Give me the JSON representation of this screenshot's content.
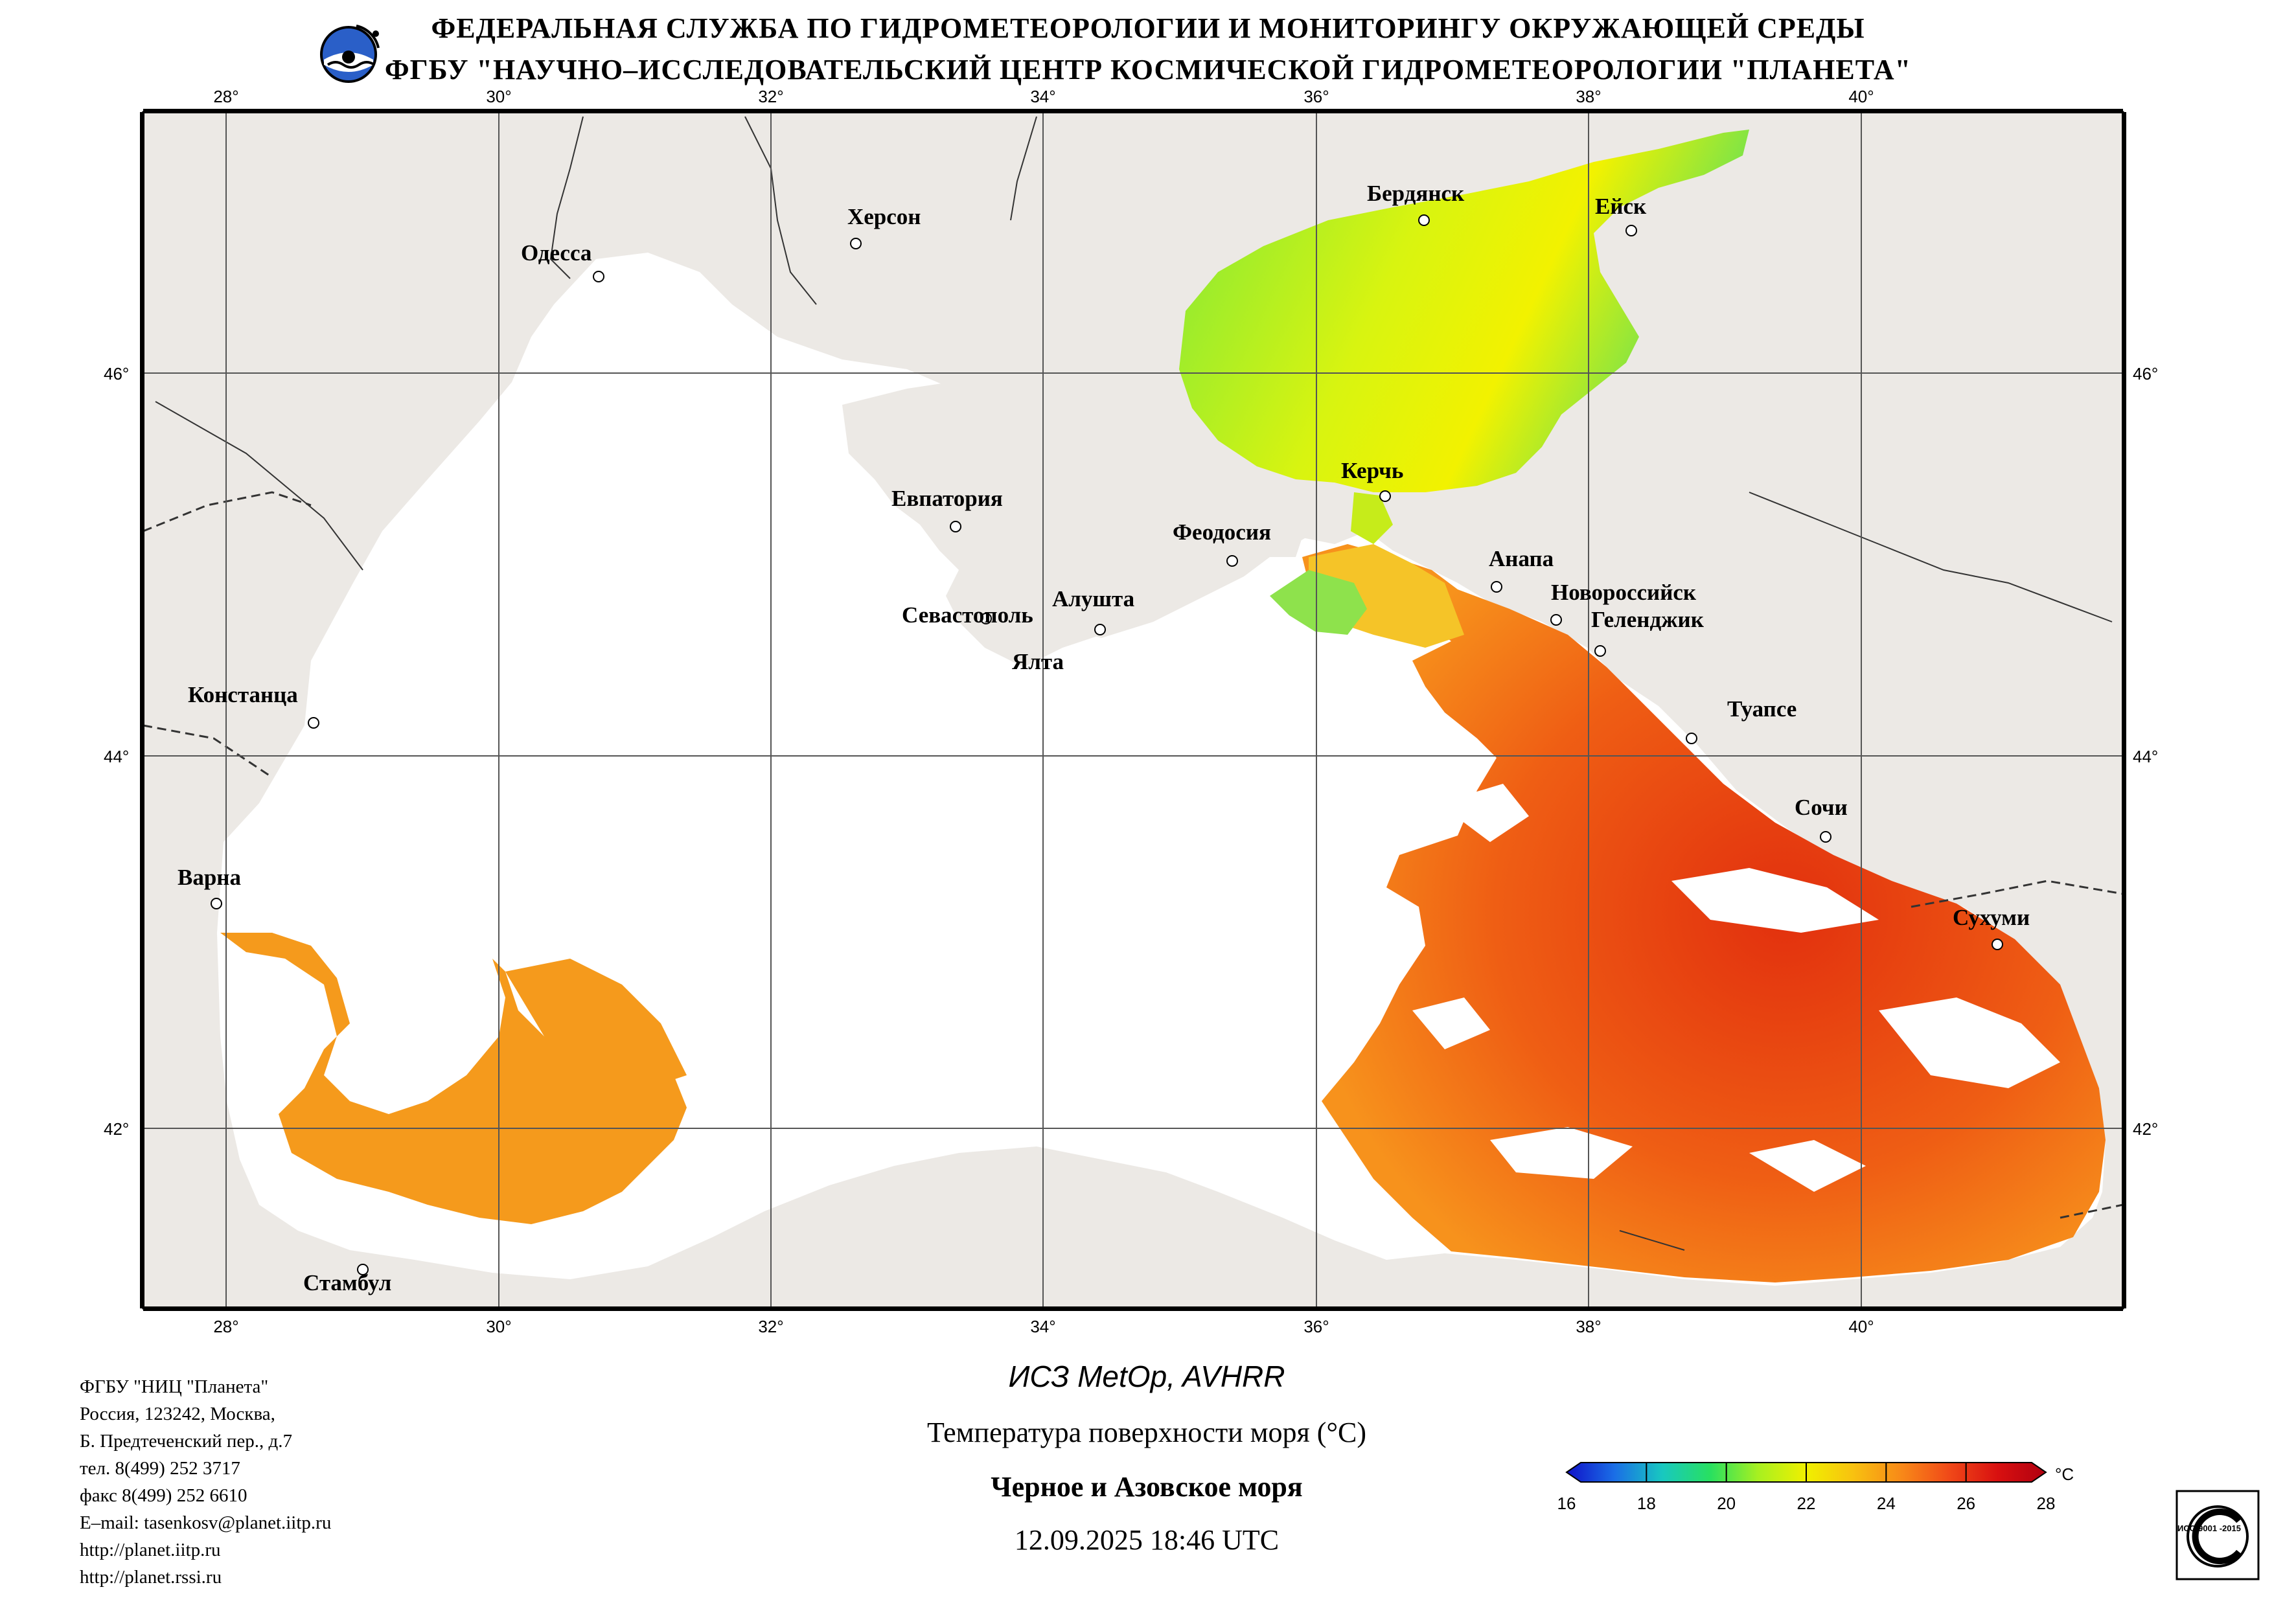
{
  "header": {
    "line1": "ФЕДЕРАЛЬНАЯ СЛУЖБА ПО ГИДРОМЕТЕОРОЛОГИИ И МОНИТОРИНГУ ОКРУЖАЮЩЕЙ СРЕДЫ",
    "line2": "ФГБУ \"НАУЧНО–ИССЛЕДОВАТЕЛЬСКИЙ ЦЕНТР КОСМИЧЕСКОЙ ГИДРОМЕТЕОРОЛОГИИ \"ПЛАНЕТА\""
  },
  "map": {
    "lon_labels": [
      "28°",
      "30°",
      "32°",
      "34°",
      "36°",
      "38°",
      "40°"
    ],
    "lat_labels": [
      "46°",
      "44°",
      "42°"
    ],
    "cities": [
      "Бердянск",
      "Ейск",
      "Херсон",
      "Одесса",
      "Керчь",
      "Евпатория",
      "Феодосия",
      "Анапа",
      "Новороссийск",
      "Геленджик",
      "Севастополь",
      "Алушта",
      "Ялта",
      "Туапсе",
      "Констанца",
      "Сочи",
      "Варна",
      "Сухуми",
      "Стамбул"
    ],
    "colors": {
      "land": "#ece9e5",
      "water_no_data": "#ffffff",
      "grid": "#555555",
      "frame": "#000000"
    }
  },
  "footer": {
    "address_lines": [
      "ФГБУ \"НИЦ \"Планета\"",
      "Россия, 123242, Москва,",
      "Б. Предтеченский пер., д.7",
      "тел. 8(499) 252 3717",
      "факс 8(499) 252 6610",
      "E–mail: tasenkosv@planet.iitp.ru",
      "http://planet.iitp.ru",
      "http://planet.rssi.ru"
    ],
    "satellite": "ИСЗ MetOp, AVHRR",
    "product": "Температура поверхности моря (°C)",
    "region": "Черное и Азовское моря",
    "datetime": "12.09.2025 18:46 UTC"
  },
  "colorbar": {
    "unit": "°C",
    "min": 16,
    "max": 28,
    "tick_labels": [
      "16",
      "18",
      "20",
      "22",
      "24",
      "26",
      "28"
    ],
    "stops": [
      "#1010c8",
      "#1a6ee6",
      "#18c8c0",
      "#28e060",
      "#a8f020",
      "#f0f000",
      "#f8c010",
      "#f88818",
      "#f04818",
      "#d81010",
      "#b00010"
    ]
  },
  "iso_badge": {
    "text": "ИСО 9001 -2015"
  }
}
